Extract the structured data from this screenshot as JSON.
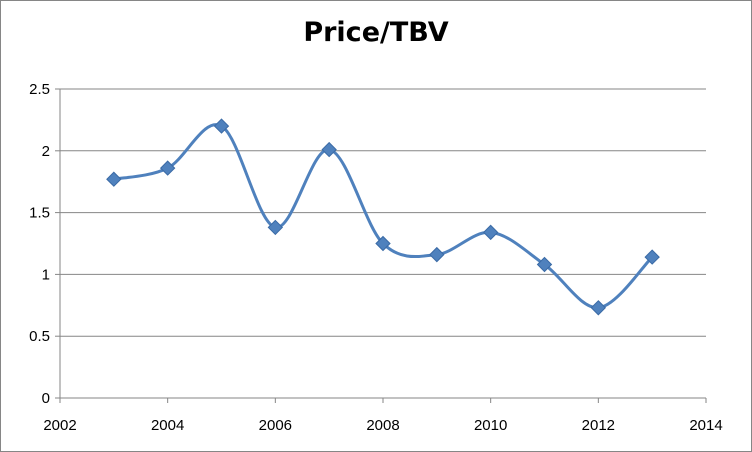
{
  "chart_data": {
    "type": "scatter",
    "title": "Price/TBV",
    "xlabel": "",
    "ylabel": "",
    "xlim": [
      2002,
      2014
    ],
    "ylim": [
      0,
      2.5
    ],
    "x_ticks": [
      "2002",
      "2004",
      "2006",
      "2008",
      "2010",
      "2012",
      "2014"
    ],
    "y_ticks": [
      "0",
      "0.5",
      "1",
      "1.5",
      "2",
      "2.5"
    ],
    "grid": "horizontal",
    "legend": "none",
    "line_style": "smoothed",
    "marker": "diamond",
    "color": "#4F81BD",
    "series": [
      {
        "x": [
          2003,
          2004,
          2005,
          2006,
          2007,
          2008,
          2009,
          2010,
          2011,
          2012,
          2013
        ],
        "y": [
          1.77,
          1.86,
          2.2,
          1.38,
          2.01,
          1.25,
          1.16,
          1.34,
          1.08,
          0.73,
          1.14
        ]
      }
    ]
  }
}
